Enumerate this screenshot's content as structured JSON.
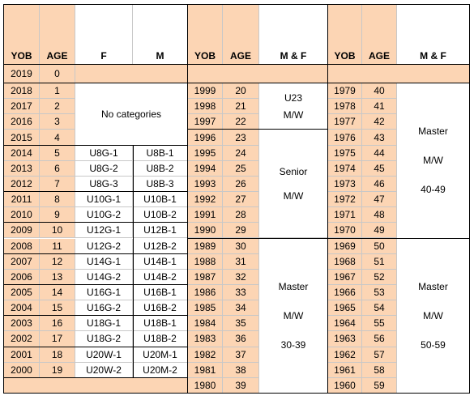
{
  "header": [
    "YOB",
    "AGE",
    "F",
    "M",
    "YOB",
    "AGE",
    "M & F",
    "YOB",
    "AGE",
    "M & F"
  ],
  "top_row": {
    "yob": 2019,
    "age": 0
  },
  "left": {
    "groups": [
      {
        "label": "No categories",
        "rows": [
          {
            "yob": 2018,
            "age": 1
          },
          {
            "yob": 2017,
            "age": 2
          },
          {
            "yob": 2016,
            "age": 3
          },
          {
            "yob": 2015,
            "age": 4
          }
        ]
      },
      {
        "rows": [
          {
            "yob": 2014,
            "age": 5,
            "f": "U8G-1",
            "m": "U8B-1"
          },
          {
            "yob": 2013,
            "age": 6,
            "f": "U8G-2",
            "m": "U8B-2"
          },
          {
            "yob": 2012,
            "age": 7,
            "f": "U8G-3",
            "m": "U8B-3"
          }
        ]
      },
      {
        "rows": [
          {
            "yob": 2011,
            "age": 8,
            "f": "U10G-1",
            "m": "U10B-1"
          },
          {
            "yob": 2010,
            "age": 9,
            "f": "U10G-2",
            "m": "U10B-2"
          }
        ]
      },
      {
        "rows": [
          {
            "yob": 2009,
            "age": 10,
            "f": "U12G-1",
            "m": "U12B-1"
          },
          {
            "yob": 2008,
            "age": 11,
            "f": "U12G-2",
            "m": "U12B-2"
          }
        ]
      },
      {
        "rows": [
          {
            "yob": 2007,
            "age": 12,
            "f": "U14G-1",
            "m": "U14B-1"
          },
          {
            "yob": 2006,
            "age": 13,
            "f": "U14G-2",
            "m": "U14B-2"
          }
        ]
      },
      {
        "rows": [
          {
            "yob": 2005,
            "age": 14,
            "f": "U16G-1",
            "m": "U16B-1"
          },
          {
            "yob": 2004,
            "age": 15,
            "f": "U16G-2",
            "m": "U16B-2"
          }
        ]
      },
      {
        "rows": [
          {
            "yob": 2003,
            "age": 16,
            "f": "U18G-1",
            "m": "U18B-1"
          },
          {
            "yob": 2002,
            "age": 17,
            "f": "U18G-2",
            "m": "U18B-2"
          }
        ]
      },
      {
        "rows": [
          {
            "yob": 2001,
            "age": 18,
            "f": "U20W-1",
            "m": "U20M-1"
          },
          {
            "yob": 2000,
            "age": 19,
            "f": "U20W-2",
            "m": "U20M-2"
          }
        ]
      }
    ]
  },
  "middle": {
    "groups": [
      {
        "lines": [
          "U23",
          "M/W"
        ],
        "rows": [
          {
            "yob": 1999,
            "age": 20
          },
          {
            "yob": 1998,
            "age": 21
          },
          {
            "yob": 1997,
            "age": 22
          }
        ]
      },
      {
        "lines": [
          "Senior",
          "M/W"
        ],
        "rows": [
          {
            "yob": 1996,
            "age": 23
          },
          {
            "yob": 1995,
            "age": 24
          },
          {
            "yob": 1994,
            "age": 25
          },
          {
            "yob": 1993,
            "age": 26
          },
          {
            "yob": 1992,
            "age": 27
          },
          {
            "yob": 1991,
            "age": 28
          },
          {
            "yob": 1990,
            "age": 29
          }
        ]
      },
      {
        "lines": [
          "Master",
          "M/W",
          "30-39"
        ],
        "rows": [
          {
            "yob": 1989,
            "age": 30
          },
          {
            "yob": 1988,
            "age": 31
          },
          {
            "yob": 1987,
            "age": 32
          },
          {
            "yob": 1986,
            "age": 33
          },
          {
            "yob": 1985,
            "age": 34
          },
          {
            "yob": 1984,
            "age": 35
          },
          {
            "yob": 1983,
            "age": 36
          },
          {
            "yob": 1982,
            "age": 37
          },
          {
            "yob": 1981,
            "age": 38
          },
          {
            "yob": 1980,
            "age": 39
          }
        ]
      }
    ]
  },
  "right": {
    "groups": [
      {
        "lines": [
          "Master",
          "M/W",
          "40-49"
        ],
        "rows": [
          {
            "yob": 1979,
            "age": 40
          },
          {
            "yob": 1978,
            "age": 41
          },
          {
            "yob": 1977,
            "age": 42
          },
          {
            "yob": 1976,
            "age": 43
          },
          {
            "yob": 1975,
            "age": 44
          },
          {
            "yob": 1974,
            "age": 45
          },
          {
            "yob": 1973,
            "age": 46
          },
          {
            "yob": 1972,
            "age": 47
          },
          {
            "yob": 1971,
            "age": 48
          },
          {
            "yob": 1970,
            "age": 49
          }
        ]
      },
      {
        "lines": [
          "Master",
          "M/W",
          "50-59"
        ],
        "rows": [
          {
            "yob": 1969,
            "age": 50
          },
          {
            "yob": 1968,
            "age": 51
          },
          {
            "yob": 1967,
            "age": 52
          },
          {
            "yob": 1966,
            "age": 53
          },
          {
            "yob": 1965,
            "age": 54
          },
          {
            "yob": 1964,
            "age": 55
          },
          {
            "yob": 1963,
            "age": 56
          },
          {
            "yob": 1962,
            "age": 57
          },
          {
            "yob": 1961,
            "age": 58
          },
          {
            "yob": 1960,
            "age": 59
          }
        ]
      }
    ]
  }
}
